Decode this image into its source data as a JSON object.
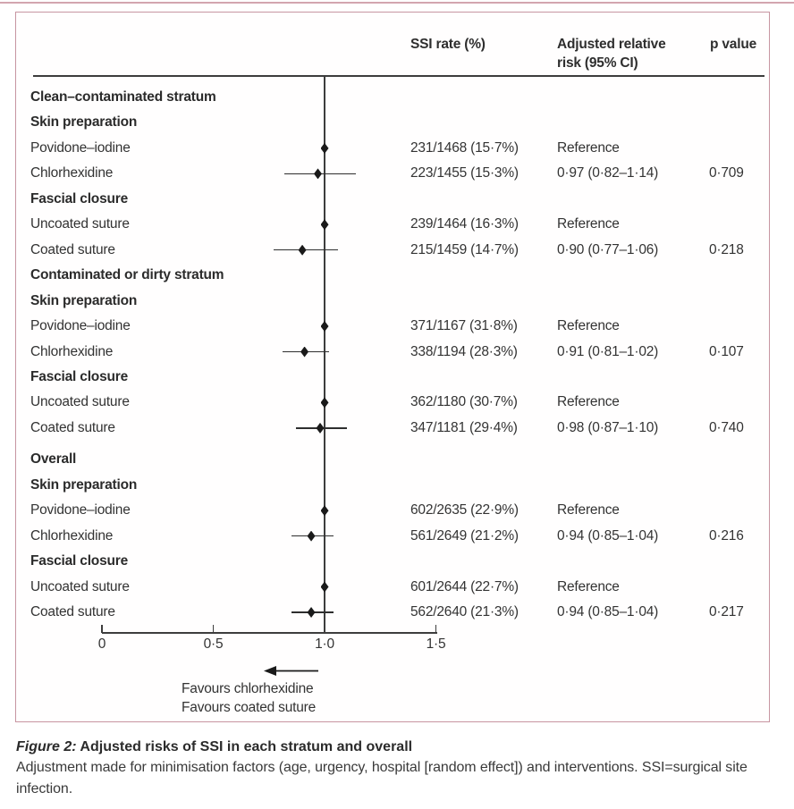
{
  "page": {
    "top_strip_color": "#d3a5af",
    "figure_border_color": "#c795a1"
  },
  "figure": {
    "header": {
      "ssi": "SSI rate (%)",
      "rr": "Adjusted relative risk (95% CI)",
      "p": "p value"
    },
    "rows": [
      {
        "type": "section",
        "label": "Clean–contaminated stratum"
      },
      {
        "type": "section",
        "label": "Skin preparation"
      },
      {
        "type": "data",
        "label": "Povidone–iodine",
        "ssi": "231/1468 (15·7%)",
        "rr": "Reference",
        "p": "",
        "est": 1.0,
        "ref": true
      },
      {
        "type": "data",
        "label": "Chlorhexidine",
        "ssi": "223/1455 (15·3%)",
        "rr": "0·97 (0·82–1·14)",
        "p": "0·709",
        "est": 0.97,
        "lo": 0.82,
        "hi": 1.14
      },
      {
        "type": "section",
        "label": "Fascial closure"
      },
      {
        "type": "data",
        "label": "Uncoated suture",
        "ssi": "239/1464 (16·3%)",
        "rr": "Reference",
        "p": "",
        "est": 1.0,
        "ref": true
      },
      {
        "type": "data",
        "label": "Coated suture",
        "ssi": "215/1459 (14·7%)",
        "rr": "0·90 (0·77–1·06)",
        "p": "0·218",
        "est": 0.9,
        "lo": 0.77,
        "hi": 1.06
      },
      {
        "type": "section",
        "label": "Contaminated or dirty stratum"
      },
      {
        "type": "section",
        "label": "Skin preparation"
      },
      {
        "type": "data",
        "label": "Povidone–iodine",
        "ssi": "371/1167 (31·8%)",
        "rr": "Reference",
        "p": "",
        "est": 1.0,
        "ref": true
      },
      {
        "type": "data",
        "label": "Chlorhexidine",
        "ssi": "338/1194 (28·3%)",
        "rr": "0·91 (0·81–1·02)",
        "p": "0·107",
        "est": 0.91,
        "lo": 0.81,
        "hi": 1.02
      },
      {
        "type": "section",
        "label": "Fascial closure"
      },
      {
        "type": "data",
        "label": "Uncoated suture",
        "ssi": "362/1180 (30·7%)",
        "rr": "Reference",
        "p": "",
        "est": 1.0,
        "ref": true
      },
      {
        "type": "data",
        "label": "Coated suture",
        "ssi": "347/1181 (29·4%)",
        "rr": "0·98 (0·87–1·10)",
        "p": "0·740",
        "est": 0.98,
        "lo": 0.87,
        "hi": 1.1
      },
      {
        "type": "section",
        "label": "Overall"
      },
      {
        "type": "section",
        "label": "Skin preparation"
      },
      {
        "type": "data",
        "label": "Povidone–iodine",
        "ssi": "602/2635 (22·9%)",
        "rr": "Reference",
        "p": "",
        "est": 1.0,
        "ref": true
      },
      {
        "type": "data",
        "label": "Chlorhexidine",
        "ssi": "561/2649 (21·2%)",
        "rr": "0·94 (0·85–1·04)",
        "p": "0·216",
        "est": 0.94,
        "lo": 0.85,
        "hi": 1.04
      },
      {
        "type": "section",
        "label": "Fascial closure"
      },
      {
        "type": "data",
        "label": "Uncoated suture",
        "ssi": "601/2644 (22·7%)",
        "rr": "Reference",
        "p": "",
        "est": 1.0,
        "ref": true
      },
      {
        "type": "data",
        "label": "Coated suture",
        "ssi": "562/2640 (21·3%)",
        "rr": "0·94 (0·85–1·04)",
        "p": "0·217",
        "est": 0.94,
        "lo": 0.85,
        "hi": 1.04
      }
    ],
    "axis": {
      "ticks": [
        {
          "label": "0",
          "value": 0
        },
        {
          "label": "0·5",
          "value": 0.5
        },
        {
          "label": "1·0",
          "value": 1.0
        },
        {
          "label": "1·5",
          "value": 1.5
        }
      ],
      "favours": [
        "Favours chlorhexidine",
        "Favours coated suture"
      ]
    }
  },
  "caption": {
    "title_prefix": "Figure 2:",
    "title_rest": " Adjusted risks of SSI in each stratum and overall",
    "body": "Adjustment made for minimisation factors (age, urgency, hospital [random effect]) and interventions. SSI=surgical site infection."
  },
  "chart_data": {
    "type": "scatter",
    "subtype": "forest-plot",
    "title": "Adjusted risks of SSI in each stratum and overall",
    "xlabel": "Adjusted relative risk (95% CI)",
    "x_range": [
      0,
      1.5
    ],
    "x_ticks": [
      0,
      0.5,
      1.0,
      1.5
    ],
    "reference_line_x": 1.0,
    "direction_annotation": "Arrow pointing left (below 1·0): Favours chlorhexidine / Favours coated suture",
    "grid": false,
    "groups": [
      {
        "stratum": "Clean–contaminated stratum",
        "categories": [
          {
            "name": "Skin preparation",
            "items": [
              {
                "label": "Povidone–iodine",
                "ssi_rate": "231/1468 (15·7%)",
                "rr": 1.0,
                "ci": null,
                "p": null,
                "note": "Reference"
              },
              {
                "label": "Chlorhexidine",
                "ssi_rate": "223/1455 (15·3%)",
                "rr": 0.97,
                "ci": [
                  0.82,
                  1.14
                ],
                "p": 0.709
              }
            ]
          },
          {
            "name": "Fascial closure",
            "items": [
              {
                "label": "Uncoated suture",
                "ssi_rate": "239/1464 (16·3%)",
                "rr": 1.0,
                "ci": null,
                "p": null,
                "note": "Reference"
              },
              {
                "label": "Coated suture",
                "ssi_rate": "215/1459 (14·7%)",
                "rr": 0.9,
                "ci": [
                  0.77,
                  1.06
                ],
                "p": 0.218
              }
            ]
          }
        ]
      },
      {
        "stratum": "Contaminated or dirty stratum",
        "categories": [
          {
            "name": "Skin preparation",
            "items": [
              {
                "label": "Povidone–iodine",
                "ssi_rate": "371/1167 (31·8%)",
                "rr": 1.0,
                "ci": null,
                "p": null,
                "note": "Reference"
              },
              {
                "label": "Chlorhexidine",
                "ssi_rate": "338/1194 (28·3%)",
                "rr": 0.91,
                "ci": [
                  0.81,
                  1.02
                ],
                "p": 0.107
              }
            ]
          },
          {
            "name": "Fascial closure",
            "items": [
              {
                "label": "Uncoated suture",
                "ssi_rate": "362/1180 (30·7%)",
                "rr": 1.0,
                "ci": null,
                "p": null,
                "note": "Reference"
              },
              {
                "label": "Coated suture",
                "ssi_rate": "347/1181 (29·4%)",
                "rr": 0.98,
                "ci": [
                  0.87,
                  1.1
                ],
                "p": 0.74
              }
            ]
          }
        ]
      },
      {
        "stratum": "Overall",
        "categories": [
          {
            "name": "Skin preparation",
            "items": [
              {
                "label": "Povidone–iodine",
                "ssi_rate": "602/2635 (22·9%)",
                "rr": 1.0,
                "ci": null,
                "p": null,
                "note": "Reference"
              },
              {
                "label": "Chlorhexidine",
                "ssi_rate": "561/2649 (21·2%)",
                "rr": 0.94,
                "ci": [
                  0.85,
                  1.04
                ],
                "p": 0.216
              }
            ]
          },
          {
            "name": "Fascial closure",
            "items": [
              {
                "label": "Uncoated suture",
                "ssi_rate": "601/2644 (22·7%)",
                "rr": 1.0,
                "ci": null,
                "p": null,
                "note": "Reference"
              },
              {
                "label": "Coated suture",
                "ssi_rate": "562/2640 (21·3%)",
                "rr": 0.94,
                "ci": [
                  0.85,
                  1.04
                ],
                "p": 0.217
              }
            ]
          }
        ]
      }
    ]
  }
}
